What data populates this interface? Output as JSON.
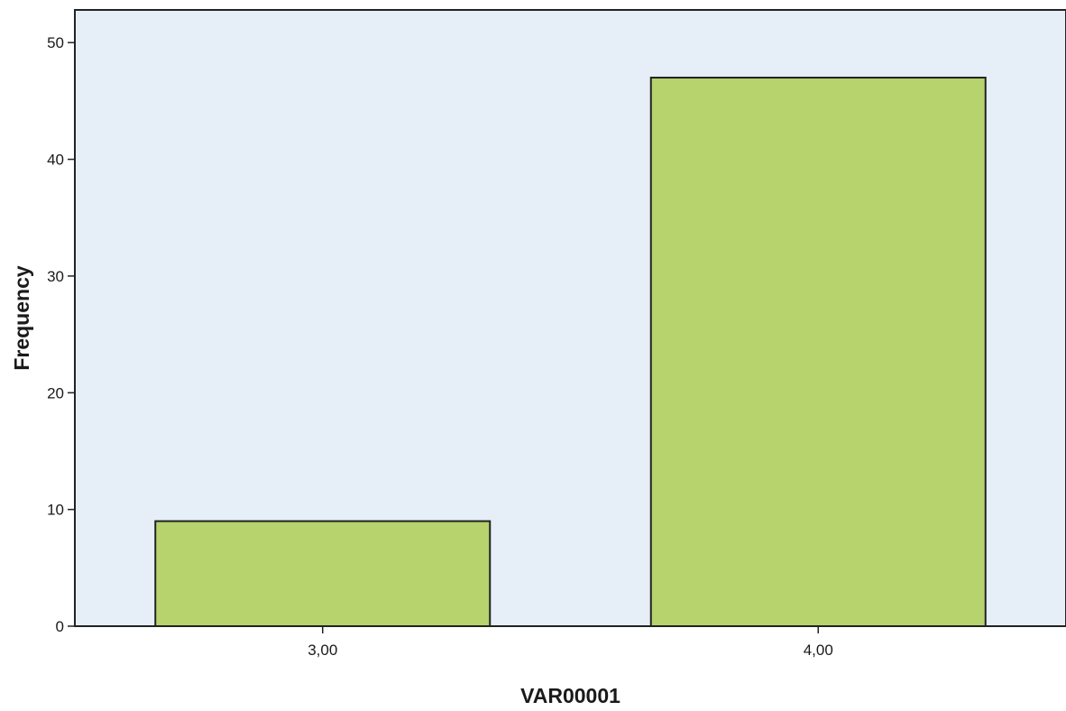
{
  "chart_data": {
    "type": "bar",
    "categories": [
      "3,00",
      "4,00"
    ],
    "values": [
      9,
      47
    ],
    "xlabel": "VAR00001",
    "ylabel": "Frequency",
    "ylim": [
      0,
      52.8
    ],
    "yticks": [
      "0",
      "10",
      "20",
      "30",
      "40",
      "50"
    ],
    "grid": false,
    "colors": {
      "plot_background": "#e6eef8",
      "bar_fill": "#b6d36e",
      "bar_stroke": "#222222",
      "axis": "#222222"
    }
  }
}
